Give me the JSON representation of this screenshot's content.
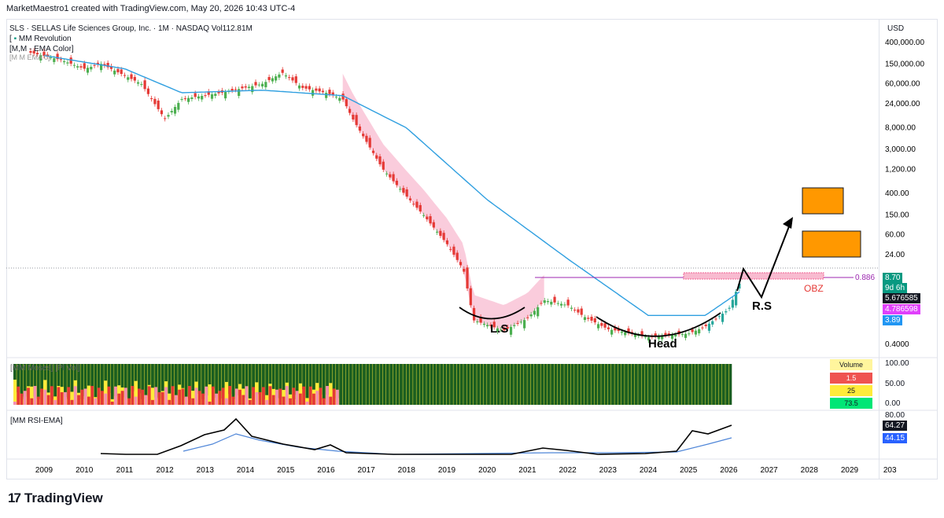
{
  "header": {
    "credit": "MarketMaestro1 created with TradingView.com, May 20, 2026 10:43 UTC-4",
    "symbol_line": "SLS · SELLAS Life Sciences Group, Inc. · 1M · NASDAQ  Vol112.81M",
    "indicator_1": "MM Revolution",
    "indicator_2": "[M,M - EMA Color]",
    "indicator_3": "[M M EMA 0]",
    "currency": "USD"
  },
  "price_axis": {
    "labels": [
      "400,000.00",
      "150,000.00",
      "60,000.00",
      "24,000.00",
      "8,000.00",
      "3,000.00",
      "1,200.00",
      "400.00",
      "150.00",
      "60.00",
      "24.00",
      "0.4000"
    ]
  },
  "price_tags": [
    {
      "text": "8.70",
      "color": "#089981"
    },
    {
      "text": "9d 6h",
      "color": "#089981"
    },
    {
      "text": "5.676585",
      "color": "#131722"
    },
    {
      "text": "4.786598",
      "color": "#e040fb"
    },
    {
      "text": "3.89",
      "color": "#2196f3"
    }
  ],
  "fib_level": {
    "label": "0.886",
    "value": 8.7,
    "color": "#9c27b0"
  },
  "annotations": {
    "left_shoulder": "L.S",
    "head": "Head",
    "right_shoulder": "R.S",
    "obz": "OBZ"
  },
  "volume_panel": {
    "title": "[MM Moses] [Pl Vol]",
    "axis": [
      "100.00",
      "50.00",
      "0.00"
    ],
    "legend": [
      {
        "text": "Volume",
        "color": "#fff59d"
      },
      {
        "text": "1.5",
        "color": "#ef5350"
      },
      {
        "text": "25",
        "color": "#ffeb3b"
      },
      {
        "text": "73.5",
        "color": "#00e676"
      }
    ]
  },
  "rsi_panel": {
    "title": "[MM RSI-EMA]",
    "axis": [
      "80.00"
    ],
    "tags": [
      {
        "text": "64.27",
        "color": "#131722"
      },
      {
        "text": "44.15",
        "color": "#2962ff"
      }
    ]
  },
  "x_axis": {
    "labels": [
      "2009",
      "2010",
      "2011",
      "2012",
      "2013",
      "2014",
      "2015",
      "2016",
      "2017",
      "2018",
      "2019",
      "2020",
      "2021",
      "2022",
      "2023",
      "2024",
      "2025",
      "2026",
      "2027",
      "2028",
      "2029",
      "203"
    ]
  },
  "brand": {
    "name": "TradingView",
    "mark": "17"
  },
  "chart_data": {
    "type": "line",
    "title": "SLS · SELLAS Life Sciences Group, Inc. · 1M · NASDAQ",
    "scale": "log",
    "x_range": [
      "2008-09",
      "2030-01"
    ],
    "y_range": [
      0.3,
      600000
    ],
    "series": [
      {
        "name": "price",
        "x": [
          "2008-09",
          "2009-06",
          "2010-01",
          "2010-06",
          "2011-06",
          "2012-01",
          "2012-06",
          "2013-06",
          "2014-06",
          "2014-12",
          "2015-06",
          "2016-01",
          "2016-06",
          "2016-09",
          "2017-06",
          "2018-01",
          "2018-06",
          "2019-01",
          "2019-06",
          "2019-09",
          "2020-06",
          "2021-01",
          "2021-06",
          "2022-01",
          "2022-06",
          "2023-01",
          "2023-06",
          "2024-01",
          "2024-06",
          "2025-01",
          "2025-06",
          "2026-01",
          "2026-05"
        ],
        "values": [
          250000,
          180000,
          120000,
          150000,
          60000,
          12000,
          30000,
          40000,
          60000,
          100000,
          50000,
          40000,
          30000,
          12000,
          1200,
          350,
          150,
          40,
          12,
          1.2,
          0.75,
          1.3,
          3.0,
          2.4,
          1.4,
          0.8,
          0.7,
          0.55,
          0.6,
          0.65,
          0.9,
          2.0,
          8.7
        ]
      },
      {
        "name": "EMA",
        "x": [
          "2009-01",
          "2011-01",
          "2012-06",
          "2014-06",
          "2016-06",
          "2018-01",
          "2020-01",
          "2022-01",
          "2024-01",
          "2025-06",
          "2026-05"
        ],
        "values": [
          220000,
          120000,
          40000,
          45000,
          35000,
          8000,
          300,
          20,
          1.5,
          1.5,
          4.786598
        ]
      }
    ],
    "fib_0886": 8.7,
    "last_price": 8.7,
    "rsi": 64.27,
    "rsi_ema": 44.15
  }
}
